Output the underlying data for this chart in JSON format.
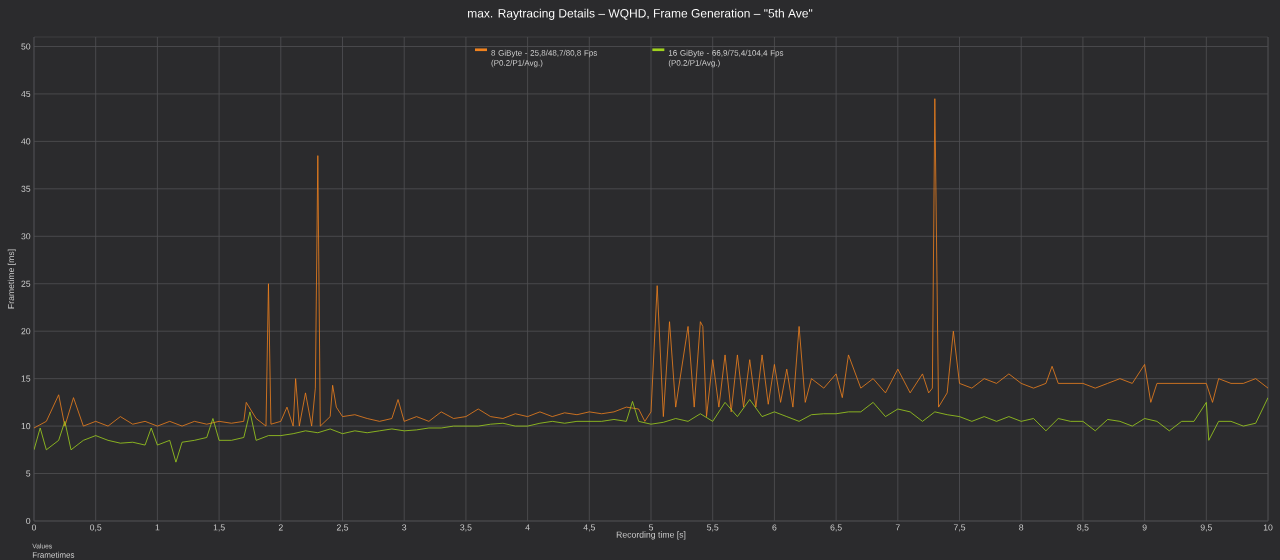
{
  "chart_data": {
    "type": "line",
    "title": "max. Raytracing Details – WQHD, Frame Generation – \"5th Ave\"",
    "xlabel": "Recording time [s]",
    "ylabel": "Frametime [ms]",
    "annotations": [
      "Values",
      "Frametimes"
    ],
    "xlim": [
      0,
      10
    ],
    "ylim": [
      0,
      51
    ],
    "xticks": [
      0,
      {
        "value": 0.5,
        "label": "0,5"
      },
      1,
      {
        "value": 1.5,
        "label": "1,5"
      },
      2,
      {
        "value": 2.5,
        "label": "2,5"
      },
      3,
      {
        "value": 3.5,
        "label": "3,5"
      },
      4,
      {
        "value": 4.5,
        "label": "4,5"
      },
      5,
      {
        "value": 5.5,
        "label": "5,5"
      },
      6,
      {
        "value": 6.5,
        "label": "6,5"
      },
      7,
      {
        "value": 7.5,
        "label": "7,5"
      },
      8,
      {
        "value": 8.5,
        "label": "8,5"
      },
      9,
      {
        "value": 9.5,
        "label": "9,5"
      },
      10
    ],
    "yticks": [
      0,
      5,
      10,
      15,
      20,
      25,
      30,
      35,
      40,
      45,
      50
    ],
    "grid": true,
    "legend": "top",
    "marker": "none",
    "line_style": "solid",
    "series": [
      {
        "name": "8 GiByte - 25,8/48,7/80,8 Fps (P0.2/P1/Avg.)",
        "color": "#f0821e",
        "x": [
          0,
          0.1,
          0.2,
          0.25,
          0.32,
          0.4,
          0.5,
          0.6,
          0.7,
          0.8,
          0.9,
          1.0,
          1.1,
          1.2,
          1.3,
          1.4,
          1.5,
          1.6,
          1.7,
          1.72,
          1.8,
          1.88,
          1.9,
          1.92,
          2.0,
          2.05,
          2.1,
          2.12,
          2.15,
          2.2,
          2.25,
          2.28,
          2.3,
          2.32,
          2.4,
          2.42,
          2.45,
          2.5,
          2.6,
          2.7,
          2.8,
          2.9,
          2.95,
          3.0,
          3.1,
          3.2,
          3.3,
          3.4,
          3.5,
          3.6,
          3.7,
          3.8,
          3.9,
          4.0,
          4.1,
          4.2,
          4.3,
          4.4,
          4.5,
          4.6,
          4.7,
          4.8,
          4.9,
          4.95,
          5.0,
          5.05,
          5.1,
          5.15,
          5.2,
          5.3,
          5.35,
          5.4,
          5.42,
          5.45,
          5.5,
          5.55,
          5.6,
          5.65,
          5.7,
          5.75,
          5.8,
          5.85,
          5.9,
          5.95,
          6.0,
          6.05,
          6.1,
          6.15,
          6.2,
          6.25,
          6.3,
          6.4,
          6.5,
          6.55,
          6.6,
          6.7,
          6.8,
          6.9,
          7.0,
          7.1,
          7.2,
          7.25,
          7.28,
          7.3,
          7.33,
          7.4,
          7.45,
          7.5,
          7.6,
          7.7,
          7.8,
          7.9,
          8.0,
          8.1,
          8.2,
          8.25,
          8.3,
          8.4,
          8.5,
          8.6,
          8.7,
          8.8,
          8.9,
          9.0,
          9.05,
          9.1,
          9.2,
          9.3,
          9.4,
          9.5,
          9.55,
          9.6,
          9.7,
          9.8,
          9.9,
          10.0
        ],
        "values": [
          9.8,
          10.5,
          13.3,
          10,
          13,
          10,
          10.5,
          10,
          11,
          10.2,
          10.5,
          10,
          10.5,
          10,
          10.5,
          10.2,
          10.5,
          10.3,
          10.5,
          12.5,
          10.8,
          10,
          25,
          10.2,
          10.5,
          12,
          10,
          15,
          10,
          13.5,
          10,
          14,
          38.5,
          10,
          11,
          14.3,
          12,
          11,
          11.2,
          10.8,
          10.5,
          10.8,
          12.8,
          10.5,
          11,
          10.5,
          11.5,
          10.8,
          11,
          11.8,
          11,
          10.8,
          11.3,
          11,
          11.5,
          11,
          11.4,
          11.2,
          11.5,
          11.3,
          11.5,
          12,
          11.8,
          10.5,
          11.5,
          24.8,
          11,
          21,
          12,
          20.5,
          12,
          21,
          20.5,
          11,
          17,
          12,
          17.5,
          11.5,
          17.5,
          12,
          17,
          12,
          17.5,
          12.3,
          16.5,
          12.5,
          16,
          12,
          20.5,
          12.5,
          15,
          14,
          15.5,
          13,
          17.5,
          14,
          15,
          13.5,
          16,
          13.5,
          15.5,
          13.5,
          14,
          44.5,
          12,
          13.5,
          20,
          14.5,
          14,
          15,
          14.5,
          15.5,
          14.5,
          14,
          14.5,
          16.3,
          14.5,
          14.5,
          14.5,
          14,
          14.5,
          15,
          14.5,
          16.5,
          12.5,
          14.5,
          14.5,
          14.5,
          14.5,
          14.5,
          12.5,
          15,
          14.5,
          14.5,
          15,
          14
        ]
      },
      {
        "name": "16 GiByte - 66,9/75,4/104,4 Fps (P0.2/P1/Avg.)",
        "color": "#a0d21e",
        "x": [
          0,
          0.05,
          0.1,
          0.2,
          0.25,
          0.3,
          0.4,
          0.5,
          0.6,
          0.7,
          0.8,
          0.9,
          0.95,
          1.0,
          1.1,
          1.15,
          1.2,
          1.3,
          1.4,
          1.45,
          1.5,
          1.6,
          1.7,
          1.75,
          1.8,
          1.9,
          2.0,
          2.1,
          2.2,
          2.3,
          2.4,
          2.5,
          2.6,
          2.7,
          2.8,
          2.9,
          3.0,
          3.1,
          3.2,
          3.3,
          3.4,
          3.5,
          3.6,
          3.7,
          3.8,
          3.9,
          4.0,
          4.1,
          4.2,
          4.3,
          4.4,
          4.5,
          4.6,
          4.7,
          4.8,
          4.85,
          4.9,
          5.0,
          5.1,
          5.2,
          5.3,
          5.4,
          5.5,
          5.6,
          5.7,
          5.8,
          5.9,
          6.0,
          6.1,
          6.2,
          6.3,
          6.4,
          6.5,
          6.6,
          6.7,
          6.8,
          6.9,
          7.0,
          7.1,
          7.2,
          7.3,
          7.4,
          7.5,
          7.6,
          7.7,
          7.8,
          7.9,
          8.0,
          8.1,
          8.2,
          8.3,
          8.4,
          8.5,
          8.6,
          8.7,
          8.8,
          8.9,
          9.0,
          9.1,
          9.2,
          9.3,
          9.4,
          9.5,
          9.52,
          9.6,
          9.7,
          9.8,
          9.9,
          10.0
        ],
        "values": [
          7.5,
          9.8,
          7.5,
          8.5,
          10.5,
          7.5,
          8.5,
          9,
          8.5,
          8.2,
          8.3,
          8,
          9.8,
          8,
          8.5,
          6.2,
          8.3,
          8.5,
          8.8,
          10.8,
          8.5,
          8.5,
          8.8,
          11.5,
          8.5,
          9,
          9,
          9.2,
          9.5,
          9.3,
          9.7,
          9.2,
          9.5,
          9.3,
          9.5,
          9.7,
          9.5,
          9.6,
          9.8,
          9.8,
          10,
          10,
          10,
          10.2,
          10.3,
          10,
          10,
          10.3,
          10.5,
          10.3,
          10.5,
          10.5,
          10.5,
          10.7,
          10.5,
          12.6,
          10.5,
          10.2,
          10.4,
          10.8,
          10.5,
          11.3,
          10.5,
          12.5,
          11,
          12.8,
          11,
          11.5,
          11,
          10.5,
          11.2,
          11.3,
          11.3,
          11.5,
          11.5,
          12.5,
          11,
          11.8,
          11.5,
          10.5,
          11.5,
          11.2,
          11,
          10.5,
          11,
          10.5,
          11,
          10.5,
          10.8,
          9.5,
          10.8,
          10.5,
          10.5,
          9.5,
          10.7,
          10.5,
          10,
          10.8,
          10.5,
          9.5,
          10.5,
          10.5,
          12.5,
          8.5,
          10.5,
          10.5,
          10,
          10.3,
          13
        ]
      }
    ]
  }
}
